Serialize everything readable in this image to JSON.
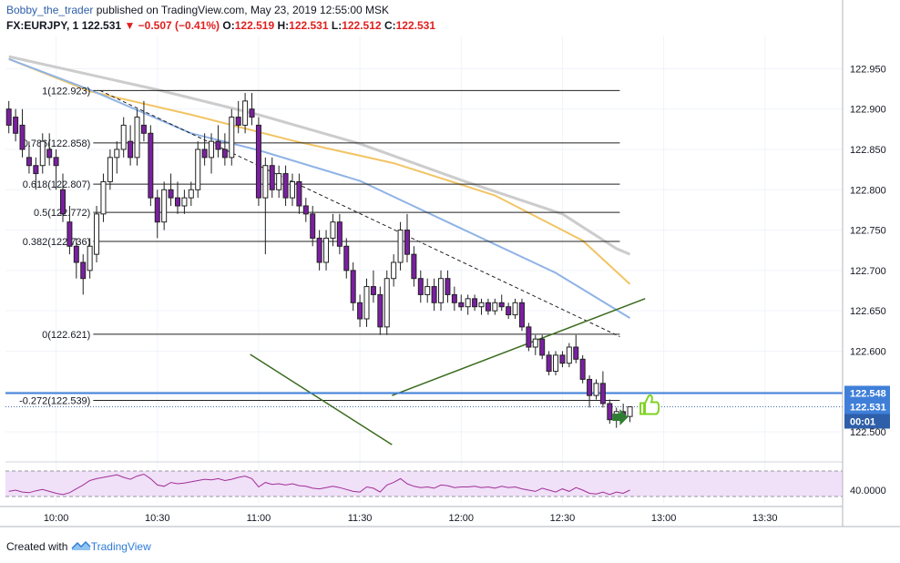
{
  "header": {
    "author": "Bobby_the_trader",
    "published_text": " published on TradingView.com, May 23, 2019 12:55:00 MSK",
    "symbol": "FX:EURJPY, 1",
    "last": "122.531",
    "change": "▼ −0.507 (−0.41%)",
    "o_label": "O:",
    "o_value": "122.519",
    "h_label": "H:",
    "h_value": "122.531",
    "l_label": "L:",
    "l_value": "122.512",
    "c_label": "C:",
    "c_value": "122.531"
  },
  "footer": {
    "created_with": "Created with",
    "brand": "TradingView"
  },
  "colors": {
    "up": "#ffffff",
    "down": "#7b1fa2",
    "outline": "#222222",
    "ma_grey": "#cccccc",
    "ma_orange": "#f2c464",
    "ma_blue": "#8fb3e6",
    "channel": "#3b6b1e",
    "hline_blue": "#3f7fd8",
    "rsi_line": "#a12f96",
    "rsi_band": "#f0e0f8",
    "label_bg": "#3f7fd8",
    "thumb": "#7ed321",
    "arrow": "#2e7d32"
  },
  "chart_data": {
    "type": "candlestick",
    "price_axis": {
      "ticks": [
        "122.950",
        "122.900",
        "122.850",
        "122.800",
        "122.750",
        "122.700",
        "122.650",
        "122.600",
        "122.550",
        "122.500"
      ],
      "tick_values": [
        122.95,
        122.9,
        122.85,
        122.8,
        122.75,
        122.7,
        122.65,
        122.6,
        122.55,
        122.5
      ],
      "range": [
        122.465,
        122.99
      ]
    },
    "time_axis": {
      "ticks": [
        "10:00",
        "10:30",
        "11:00",
        "11:30",
        "12:00",
        "12:30",
        "13:00",
        "13:30"
      ],
      "tick_minutes": [
        600,
        630,
        660,
        690,
        720,
        750,
        780,
        810
      ],
      "range_minutes": [
        585,
        833
      ]
    },
    "fib_levels": [
      {
        "label": "1(122.923)",
        "value": 122.923
      },
      {
        "label": "0.786(122.858)",
        "value": 122.858
      },
      {
        "label": "0.618(122.807)",
        "value": 122.807
      },
      {
        "label": "0.5(122.772)",
        "value": 122.772
      },
      {
        "label": "0.382(122.736)",
        "value": 122.736
      },
      {
        "label": "0(122.621)",
        "value": 122.621
      },
      {
        "label": "-0.272(122.539)",
        "value": 122.539
      }
    ],
    "fib_time_span": [
      611,
      767
    ],
    "price_labels": [
      {
        "text": "122.548",
        "value": 122.548
      },
      {
        "text": "122.531",
        "value": 122.531
      },
      {
        "text": "00:01",
        "value": 122.513
      }
    ],
    "horizontal_line": 122.548,
    "last_price": 122.531,
    "trendline": [
      [
        613,
        122.923
      ],
      [
        767,
        122.618
      ]
    ],
    "channel_upper": [
      [
        774.5,
        122.665
      ],
      [
        699.5,
        122.545
      ]
    ],
    "channel_lower": [
      [
        657.5,
        122.596
      ],
      [
        699.5,
        122.484
      ]
    ],
    "moving_averages": [
      {
        "color_key": "ma_grey",
        "points": [
          [
            586,
            122.965
          ],
          [
            630,
            122.924
          ],
          [
            660,
            122.893
          ],
          [
            690,
            122.857
          ],
          [
            720,
            122.812
          ],
          [
            750,
            122.77
          ],
          [
            766,
            122.727
          ],
          [
            770,
            122.72
          ]
        ]
      },
      {
        "color_key": "ma_orange",
        "points": [
          [
            586,
            122.962
          ],
          [
            610,
            122.922
          ],
          [
            640,
            122.893
          ],
          [
            670,
            122.861
          ],
          [
            700,
            122.833
          ],
          [
            730,
            122.793
          ],
          [
            756,
            122.737
          ],
          [
            770,
            122.683
          ]
        ]
      },
      {
        "color_key": "ma_blue",
        "points": [
          [
            586,
            122.962
          ],
          [
            610,
            122.924
          ],
          [
            640,
            122.87
          ],
          [
            660,
            122.849
          ],
          [
            690,
            122.811
          ],
          [
            720,
            122.752
          ],
          [
            748,
            122.697
          ],
          [
            770,
            122.641
          ]
        ]
      }
    ],
    "candles": [
      [
        586,
        122.9,
        122.91,
        122.87,
        122.88
      ],
      [
        588,
        122.89,
        122.9,
        122.86,
        122.87
      ],
      [
        590,
        122.88,
        122.9,
        122.84,
        122.85
      ],
      [
        592,
        122.84,
        122.86,
        122.82,
        122.83
      ],
      [
        594,
        122.83,
        122.84,
        122.8,
        122.82
      ],
      [
        596,
        122.83,
        122.87,
        122.82,
        122.86
      ],
      [
        598,
        122.85,
        122.87,
        122.83,
        122.84
      ],
      [
        600,
        122.84,
        122.85,
        122.8,
        122.83
      ],
      [
        602,
        122.8,
        122.82,
        122.76,
        122.77
      ],
      [
        604,
        122.76,
        122.78,
        122.72,
        122.73
      ],
      [
        606,
        122.73,
        122.74,
        122.69,
        122.71
      ],
      [
        608,
        122.71,
        122.72,
        122.67,
        122.69
      ],
      [
        610,
        122.7,
        122.74,
        122.69,
        122.73
      ],
      [
        612,
        122.72,
        122.78,
        122.71,
        122.77
      ],
      [
        614,
        122.77,
        122.82,
        122.76,
        122.81
      ],
      [
        616,
        122.81,
        122.85,
        122.8,
        122.84
      ],
      [
        618,
        122.84,
        122.86,
        122.82,
        122.85
      ],
      [
        620,
        122.85,
        122.89,
        122.84,
        122.88
      ],
      [
        622,
        122.86,
        122.88,
        122.83,
        122.84
      ],
      [
        624,
        122.84,
        122.9,
        122.83,
        122.89
      ],
      [
        626,
        122.88,
        122.91,
        122.86,
        122.87
      ],
      [
        628,
        122.87,
        122.88,
        122.78,
        122.79
      ],
      [
        630,
        122.79,
        122.8,
        122.74,
        122.76
      ],
      [
        632,
        122.76,
        122.81,
        122.75,
        122.8
      ],
      [
        634,
        122.8,
        122.82,
        122.78,
        122.79
      ],
      [
        636,
        122.79,
        122.81,
        122.77,
        122.78
      ],
      [
        638,
        122.78,
        122.8,
        122.77,
        122.79
      ],
      [
        640,
        122.79,
        122.81,
        122.78,
        122.8
      ],
      [
        642,
        122.8,
        122.86,
        122.79,
        122.85
      ],
      [
        644,
        122.85,
        122.87,
        122.83,
        122.84
      ],
      [
        646,
        122.84,
        122.87,
        122.82,
        122.86
      ],
      [
        648,
        122.86,
        122.88,
        122.84,
        122.85
      ],
      [
        650,
        122.85,
        122.87,
        122.83,
        122.84
      ],
      [
        652,
        122.84,
        122.9,
        122.83,
        122.89
      ],
      [
        654,
        122.89,
        122.91,
        122.87,
        122.88
      ],
      [
        656,
        122.88,
        122.92,
        122.87,
        122.91
      ],
      [
        658,
        122.9,
        122.92,
        122.88,
        122.89
      ],
      [
        660,
        122.88,
        122.89,
        122.78,
        122.79
      ],
      [
        662,
        122.79,
        122.84,
        122.72,
        122.83
      ],
      [
        664,
        122.83,
        122.84,
        122.79,
        122.8
      ],
      [
        666,
        122.8,
        122.83,
        122.79,
        122.82
      ],
      [
        668,
        122.82,
        122.83,
        122.78,
        122.79
      ],
      [
        670,
        122.79,
        122.82,
        122.78,
        122.81
      ],
      [
        672,
        122.81,
        122.82,
        122.77,
        122.78
      ],
      [
        674,
        122.78,
        122.79,
        122.76,
        122.77
      ],
      [
        676,
        122.77,
        122.78,
        122.73,
        122.74
      ],
      [
        678,
        122.74,
        122.75,
        122.7,
        122.71
      ],
      [
        680,
        122.71,
        122.75,
        122.7,
        122.74
      ],
      [
        682,
        122.74,
        122.77,
        122.73,
        122.76
      ],
      [
        684,
        122.76,
        122.77,
        122.72,
        122.73
      ],
      [
        686,
        122.73,
        122.74,
        122.69,
        122.7
      ],
      [
        688,
        122.7,
        122.71,
        122.65,
        122.66
      ],
      [
        690,
        122.66,
        122.67,
        122.63,
        122.64
      ],
      [
        692,
        122.64,
        122.69,
        122.63,
        122.68
      ],
      [
        694,
        122.68,
        122.7,
        122.66,
        122.67
      ],
      [
        696,
        122.67,
        122.68,
        122.62,
        122.63
      ],
      [
        698,
        122.63,
        122.7,
        122.62,
        122.69
      ],
      [
        700,
        122.69,
        122.72,
        122.68,
        122.71
      ],
      [
        702,
        122.71,
        122.76,
        122.7,
        122.75
      ],
      [
        704,
        122.75,
        122.77,
        122.71,
        122.72
      ],
      [
        706,
        122.72,
        122.73,
        122.68,
        122.69
      ],
      [
        708,
        122.69,
        122.7,
        122.66,
        122.67
      ],
      [
        710,
        122.67,
        122.69,
        122.66,
        122.68
      ],
      [
        712,
        122.68,
        122.69,
        122.65,
        122.66
      ],
      [
        714,
        122.66,
        122.7,
        122.65,
        122.69
      ],
      [
        716,
        122.69,
        122.7,
        122.66,
        122.67
      ],
      [
        718,
        122.67,
        122.68,
        122.65,
        122.66
      ],
      [
        720,
        122.66,
        122.67,
        122.65,
        122.655
      ],
      [
        722,
        122.655,
        122.67,
        122.645,
        122.665
      ],
      [
        724,
        122.665,
        122.67,
        122.65,
        122.655
      ],
      [
        726,
        122.655,
        122.665,
        122.645,
        122.66
      ],
      [
        728,
        122.66,
        122.665,
        122.645,
        122.65
      ],
      [
        730,
        122.65,
        122.665,
        122.645,
        122.66
      ],
      [
        732,
        122.66,
        122.67,
        122.65,
        122.655
      ],
      [
        734,
        122.655,
        122.66,
        122.64,
        122.645
      ],
      [
        736,
        122.645,
        122.665,
        122.64,
        122.66
      ],
      [
        738,
        122.66,
        122.665,
        122.625,
        122.63
      ],
      [
        740,
        122.63,
        122.635,
        122.6,
        122.605
      ],
      [
        742,
        122.605,
        122.62,
        122.595,
        122.615
      ],
      [
        744,
        122.615,
        122.62,
        122.59,
        122.595
      ],
      [
        746,
        122.595,
        122.6,
        122.57,
        122.575
      ],
      [
        748,
        122.575,
        122.6,
        122.57,
        122.595
      ],
      [
        750,
        122.595,
        122.6,
        122.58,
        122.585
      ],
      [
        752,
        122.585,
        122.61,
        122.58,
        122.605
      ],
      [
        754,
        122.605,
        122.62,
        122.585,
        122.59
      ],
      [
        756,
        122.59,
        122.595,
        122.56,
        122.565
      ],
      [
        758,
        122.565,
        122.57,
        122.53,
        122.545
      ],
      [
        760,
        122.545,
        122.565,
        122.54,
        122.56
      ],
      [
        762,
        122.56,
        122.575,
        122.53,
        122.535
      ],
      [
        764,
        122.535,
        122.54,
        122.51,
        122.515
      ],
      [
        766,
        122.515,
        122.53,
        122.505,
        122.525
      ],
      [
        768,
        122.525,
        122.535,
        122.515,
        122.52
      ],
      [
        770,
        122.519,
        122.531,
        122.512,
        122.531
      ]
    ],
    "rsi": {
      "level_label": "40.0000",
      "level": 40,
      "range": [
        20,
        80
      ],
      "values": [
        38,
        40,
        37,
        36,
        39,
        41,
        38,
        35,
        33,
        36,
        42,
        48,
        55,
        58,
        60,
        62,
        64,
        60,
        57,
        62,
        65,
        58,
        48,
        46,
        52,
        50,
        51,
        53,
        55,
        57,
        56,
        58,
        55,
        57,
        60,
        62,
        58,
        45,
        52,
        49,
        50,
        48,
        50,
        47,
        46,
        43,
        42,
        44,
        46,
        44,
        41,
        38,
        37,
        45,
        43,
        37,
        48,
        52,
        58,
        50,
        46,
        44,
        45,
        43,
        48,
        47,
        44,
        45,
        45,
        46,
        44,
        45,
        43,
        46,
        44,
        45,
        42,
        40,
        38,
        43,
        40,
        37,
        42,
        38,
        44,
        40,
        35,
        34,
        37,
        33,
        37,
        35,
        40
      ]
    }
  }
}
